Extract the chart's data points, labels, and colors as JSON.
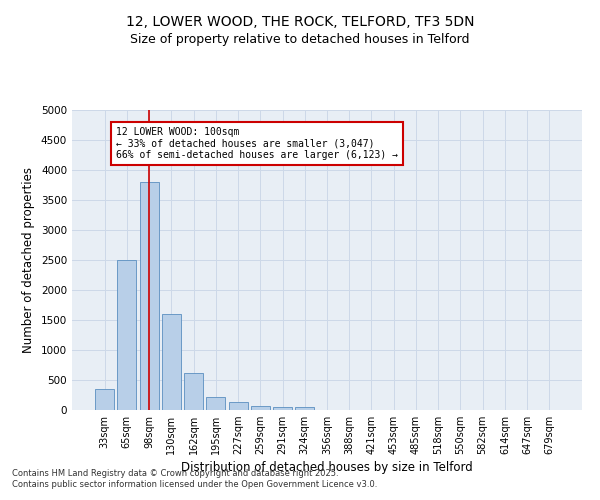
{
  "title1": "12, LOWER WOOD, THE ROCK, TELFORD, TF3 5DN",
  "title2": "Size of property relative to detached houses in Telford",
  "xlabel": "Distribution of detached houses by size in Telford",
  "ylabel": "Number of detached properties",
  "categories": [
    "33sqm",
    "65sqm",
    "98sqm",
    "130sqm",
    "162sqm",
    "195sqm",
    "227sqm",
    "259sqm",
    "291sqm",
    "324sqm",
    "356sqm",
    "388sqm",
    "421sqm",
    "453sqm",
    "485sqm",
    "518sqm",
    "550sqm",
    "582sqm",
    "614sqm",
    "647sqm",
    "679sqm"
  ],
  "values": [
    350,
    2500,
    3800,
    1600,
    620,
    220,
    130,
    60,
    50,
    50,
    0,
    0,
    0,
    0,
    0,
    0,
    0,
    0,
    0,
    0,
    0
  ],
  "bar_color": "#b8cfe8",
  "bar_edgecolor": "#5a8fc0",
  "vline_x": 2,
  "vline_color": "#cc0000",
  "annotation_text": "12 LOWER WOOD: 100sqm\n← 33% of detached houses are smaller (3,047)\n66% of semi-detached houses are larger (6,123) →",
  "annotation_fontsize": 7,
  "box_edgecolor": "#cc0000",
  "ylim": [
    0,
    5000
  ],
  "yticks": [
    0,
    500,
    1000,
    1500,
    2000,
    2500,
    3000,
    3500,
    4000,
    4500,
    5000
  ],
  "grid_color": "#cdd8e8",
  "background_color": "#e8eef5",
  "footer1": "Contains HM Land Registry data © Crown copyright and database right 2025.",
  "footer2": "Contains public sector information licensed under the Open Government Licence v3.0.",
  "title1_fontsize": 10,
  "title2_fontsize": 9,
  "xlabel_fontsize": 8.5,
  "ylabel_fontsize": 8.5
}
